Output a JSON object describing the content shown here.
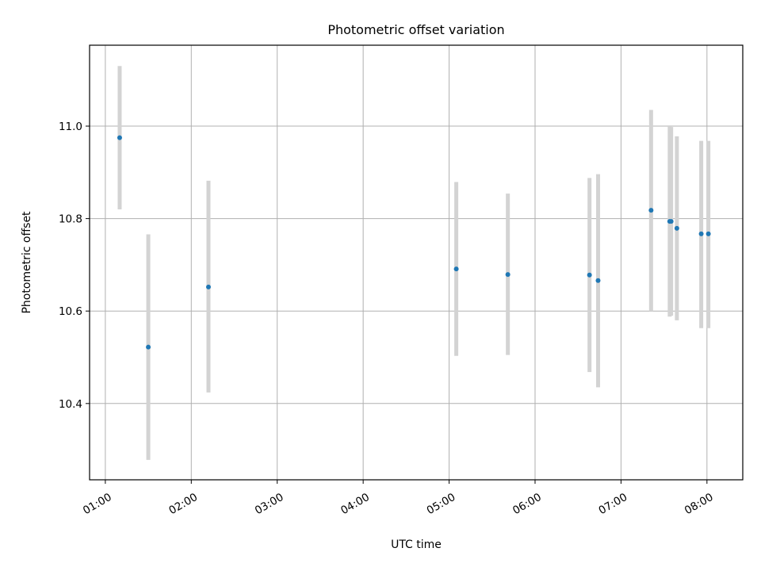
{
  "chart_data": {
    "type": "scatter",
    "title": "Photometric offset variation",
    "xlabel": "UTC time",
    "ylabel": "Photometric offset",
    "x_tick_labels": [
      "01:00",
      "02:00",
      "03:00",
      "04:00",
      "05:00",
      "06:00",
      "07:00",
      "08:00"
    ],
    "y_tick_labels": [
      "10.4",
      "10.6",
      "10.8",
      "11.0"
    ],
    "y_ticks": [
      10.4,
      10.6,
      10.8,
      11.0
    ],
    "xlim": [
      "00:49",
      "08:25"
    ],
    "ylim": [
      10.235,
      11.175
    ],
    "grid": true,
    "marker_color": "#1f77b4",
    "errorbar_color": "#d3d3d3",
    "series": [
      {
        "points": [
          {
            "x": "01:10",
            "y": 10.975,
            "ylow": 10.82,
            "yhigh": 11.13
          },
          {
            "x": "01:30",
            "y": 10.522,
            "ylow": 10.278,
            "yhigh": 10.766
          },
          {
            "x": "02:12",
            "y": 10.652,
            "ylow": 10.424,
            "yhigh": 10.882
          },
          {
            "x": "05:05",
            "y": 10.691,
            "ylow": 10.503,
            "yhigh": 10.879
          },
          {
            "x": "05:41",
            "y": 10.679,
            "ylow": 10.505,
            "yhigh": 10.854
          },
          {
            "x": "06:38",
            "y": 10.678,
            "ylow": 10.468,
            "yhigh": 10.888
          },
          {
            "x": "06:44",
            "y": 10.666,
            "ylow": 10.435,
            "yhigh": 10.896
          },
          {
            "x": "07:21",
            "y": 10.818,
            "ylow": 10.6,
            "yhigh": 11.035
          },
          {
            "x": "07:34",
            "y": 10.794,
            "ylow": 10.588,
            "yhigh": 11.0
          },
          {
            "x": "07:35",
            "y": 10.794,
            "ylow": 10.59,
            "yhigh": 10.998
          },
          {
            "x": "07:39",
            "y": 10.779,
            "ylow": 10.58,
            "yhigh": 10.978
          },
          {
            "x": "07:56",
            "y": 10.767,
            "ylow": 10.563,
            "yhigh": 10.968
          },
          {
            "x": "08:01",
            "y": 10.767,
            "ylow": 10.563,
            "yhigh": 10.968
          }
        ]
      }
    ]
  }
}
